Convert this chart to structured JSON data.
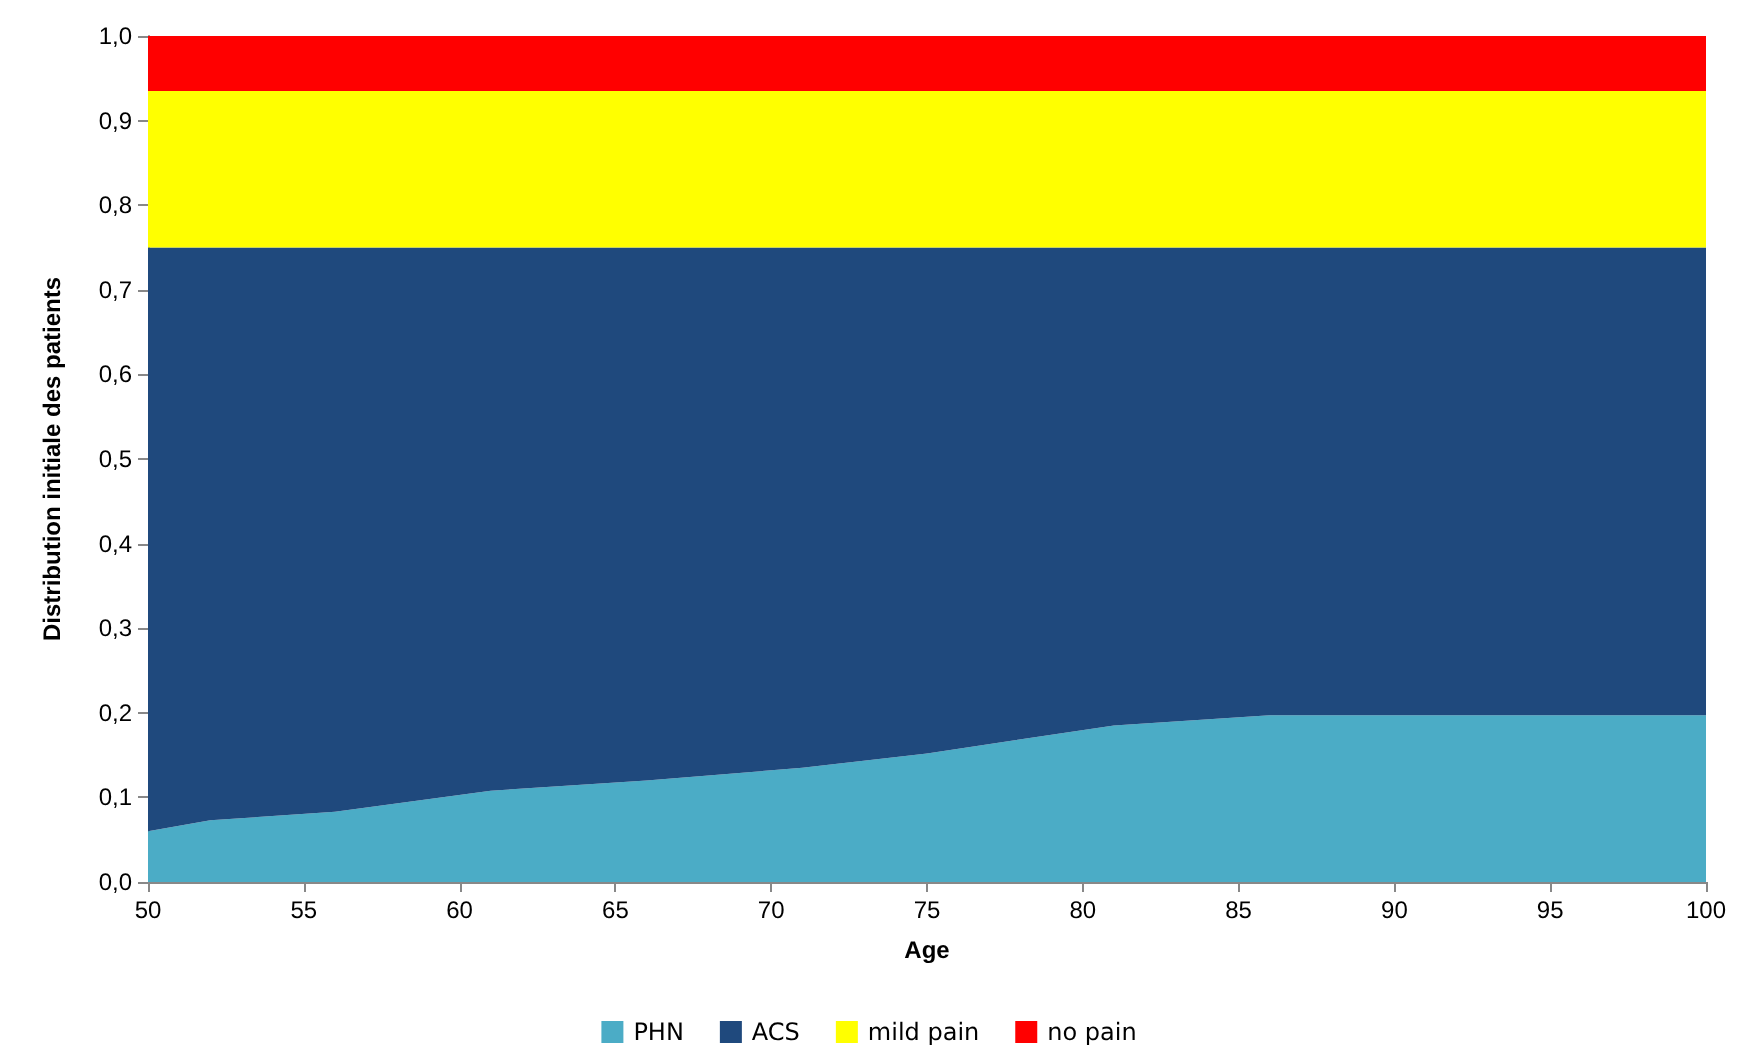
{
  "chart_data": {
    "type": "area",
    "stacked": true,
    "xlabel": "Age",
    "ylabel": "Distribution initiale des patients",
    "x": [
      50,
      52,
      56,
      61,
      66,
      71,
      75,
      81,
      86,
      100
    ],
    "series": [
      {
        "name": "PHN",
        "color": "#4bacc6",
        "values": [
          0.06,
          0.073,
          0.083,
          0.108,
          0.12,
          0.135,
          0.152,
          0.185,
          0.197,
          0.197
        ]
      },
      {
        "name": "ACS",
        "color": "#1f497d",
        "values": [
          0.69,
          0.677,
          0.667,
          0.642,
          0.63,
          0.615,
          0.598,
          0.565,
          0.553,
          0.553
        ]
      },
      {
        "name": "mild pain",
        "color": "#ffff00",
        "values": [
          0.185,
          0.185,
          0.185,
          0.185,
          0.185,
          0.185,
          0.185,
          0.185,
          0.185,
          0.185
        ]
      },
      {
        "name": "no pain",
        "color": "#ff0000",
        "values": [
          0.065,
          0.065,
          0.065,
          0.065,
          0.065,
          0.065,
          0.065,
          0.065,
          0.065,
          0.065
        ]
      }
    ],
    "xlim": [
      50,
      100
    ],
    "xticks": [
      50,
      55,
      60,
      65,
      70,
      75,
      80,
      85,
      90,
      95,
      100
    ],
    "ylim": [
      0,
      1
    ],
    "yticks": [
      {
        "value": 0,
        "label": "0,0"
      },
      {
        "value": 0.1,
        "label": "0,1"
      },
      {
        "value": 0.2,
        "label": "0,2"
      },
      {
        "value": 0.3,
        "label": "0,3"
      },
      {
        "value": 0.4,
        "label": "0,4"
      },
      {
        "value": 0.5,
        "label": "0,5"
      },
      {
        "value": 0.6,
        "label": "0,6"
      },
      {
        "value": 0.7,
        "label": "0,7"
      },
      {
        "value": 0.8,
        "label": "0,8"
      },
      {
        "value": 0.9,
        "label": "0,9"
      },
      {
        "value": 1,
        "label": "1,0"
      }
    ],
    "grid": false,
    "legend": "bottom"
  }
}
